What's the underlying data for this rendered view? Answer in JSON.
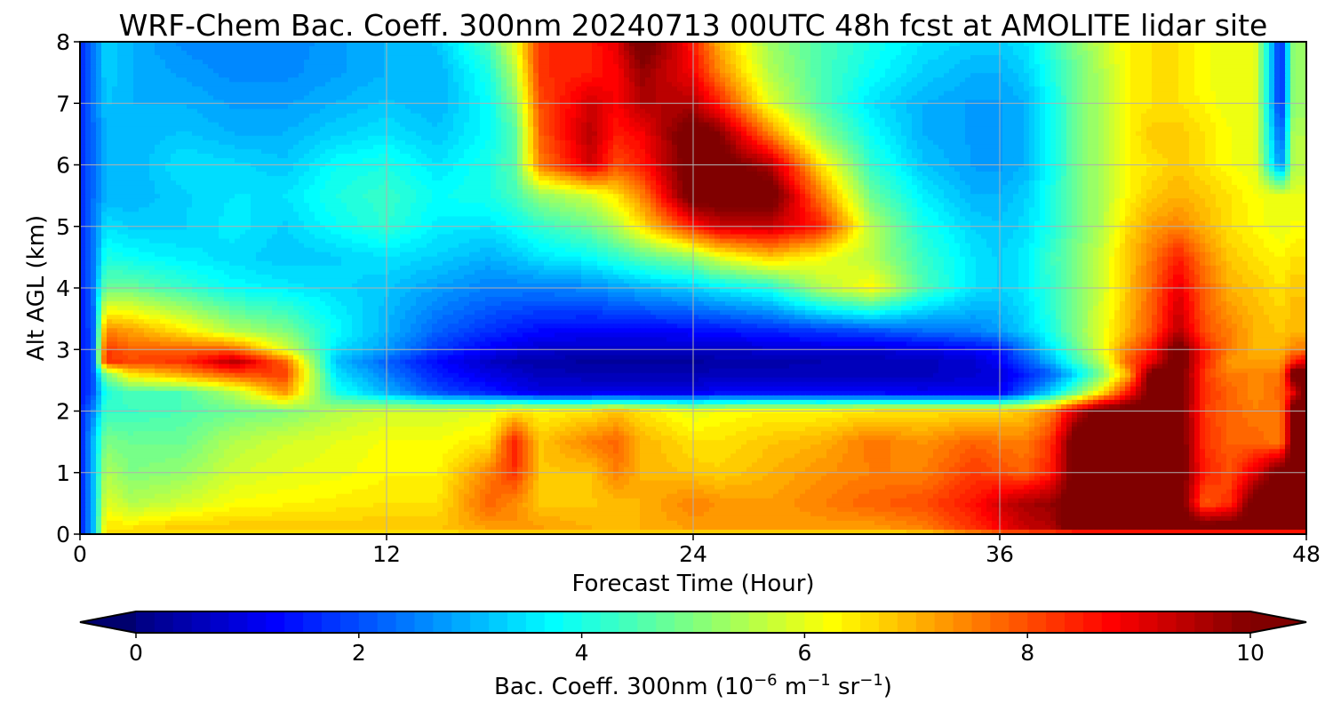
{
  "chart_data": {
    "type": "heatmap",
    "title": "WRF-Chem Bac. Coeff. 300nm  20240713 00UTC 48h fcst at AMOLITE lidar site",
    "xlabel": "Forecast Time (Hour)",
    "ylabel": "Alt AGL (km)",
    "xlim": [
      0,
      48
    ],
    "ylim": [
      0,
      8
    ],
    "x_ticks": [
      "0",
      "12",
      "24",
      "36",
      "48"
    ],
    "y_ticks": [
      "0",
      "1",
      "2",
      "3",
      "4",
      "5",
      "6",
      "7",
      "8"
    ],
    "grid": true,
    "colorbar": {
      "label_main": "Bac. Coeff. 300nm  (10",
      "label_exp1": "−6",
      "label_mid": " m",
      "label_exp2": "−1",
      "label_mid2": " sr",
      "label_exp3": "−1",
      "label_end": ")",
      "range": [
        0,
        10
      ],
      "extend": "both",
      "colormap": "jet",
      "ticks": [
        "0",
        "2",
        "4",
        "6",
        "8",
        "10"
      ]
    },
    "x": [
      0,
      0.5,
      1,
      2,
      4,
      6,
      8,
      10,
      12,
      14,
      16,
      17,
      18,
      20,
      21,
      22,
      24,
      25,
      27,
      29,
      31,
      33,
      35,
      36,
      37,
      38,
      39,
      40,
      41,
      42,
      43,
      44,
      45,
      46,
      47,
      47.5,
      48
    ],
    "y": [
      0,
      0.1,
      0.5,
      1,
      1.5,
      2,
      2.3,
      2.6,
      2.8,
      3,
      3.3,
      4,
      4.5,
      5,
      5.5,
      6,
      6.5,
      7,
      7.5,
      8
    ],
    "z": [
      [
        1.5,
        3,
        6.5,
        6.5,
        6.5,
        6.5,
        6.5,
        6.5,
        6.5,
        6.5,
        6.5,
        6.5,
        6.5,
        6.5,
        6.5,
        6.5,
        6.5,
        6.5,
        6.5,
        6.5,
        6.5,
        6.5,
        7.2,
        7.5,
        7.5,
        7.5,
        7.5,
        7.5,
        7.5,
        7.5,
        7.5,
        7.5,
        7.5,
        7.5,
        7.5,
        7.5,
        7.5
      ],
      [
        1.5,
        3,
        6.5,
        6.5,
        6.8,
        6.8,
        6.8,
        6.8,
        6.8,
        6.8,
        7.2,
        7.3,
        7.2,
        7,
        7,
        7,
        7.2,
        7.2,
        7.2,
        7.2,
        7.2,
        7.5,
        8.3,
        8.8,
        9.3,
        9.5,
        10.5,
        10.5,
        10.5,
        10.5,
        10.5,
        10.5,
        10.5,
        10.5,
        10.5,
        10.5,
        10.5
      ],
      [
        1.5,
        3,
        6,
        5.5,
        5.8,
        6.2,
        6.3,
        6.4,
        6.5,
        6.5,
        7.8,
        7.4,
        6.8,
        6.8,
        6.9,
        7,
        7.5,
        7.3,
        7.2,
        7.5,
        7.8,
        8,
        8.6,
        9.2,
        9.6,
        9.8,
        10.5,
        10.5,
        10.5,
        10.5,
        10.5,
        7.8,
        8.3,
        10.5,
        10.5,
        10.5,
        10.5
      ],
      [
        1.5,
        3,
        5.5,
        5,
        5.2,
        5.8,
        6,
        6.1,
        6.3,
        6.3,
        7.5,
        8.3,
        6.8,
        6.8,
        7.5,
        7,
        6.8,
        6.7,
        7,
        7.3,
        7.5,
        7.5,
        8.2,
        8,
        7.8,
        8.5,
        10.5,
        10.5,
        10.5,
        10.5,
        10.5,
        8.5,
        8,
        9,
        10.5,
        10.5,
        10.5
      ],
      [
        1.5,
        3,
        5,
        4.8,
        4.8,
        5.5,
        5.8,
        6,
        6.2,
        6.2,
        6.5,
        8.5,
        6.8,
        7.5,
        7.8,
        7,
        6.5,
        6.5,
        6.8,
        7,
        7.6,
        7.3,
        7.8,
        7.6,
        7.5,
        8.3,
        10.5,
        10.5,
        10.5,
        10.5,
        10.5,
        8.3,
        7.8,
        7.8,
        7.5,
        10.5,
        10.5
      ],
      [
        1.5,
        2.5,
        4.3,
        4.3,
        4.5,
        4.8,
        5,
        5.5,
        5.8,
        5.8,
        6,
        6.5,
        6.3,
        6.5,
        6.8,
        6.5,
        6,
        6.2,
        6.3,
        6.3,
        6.5,
        6.5,
        6.6,
        6.6,
        6.8,
        7.5,
        9.3,
        10.5,
        10.5,
        10.5,
        10.5,
        8.2,
        7.8,
        7.5,
        7.6,
        10.5,
        10.5
      ],
      [
        1.5,
        2,
        4,
        4.5,
        4.5,
        5.5,
        7.3,
        4,
        3,
        2,
        1.5,
        1.2,
        1,
        1,
        1,
        1,
        1,
        1.2,
        1.3,
        1.2,
        1.2,
        1.1,
        1.1,
        1.1,
        2.2,
        3.3,
        4.8,
        6.5,
        8.5,
        10.5,
        10.5,
        8.3,
        7.8,
        7.4,
        7.8,
        9,
        10.5
      ],
      [
        1.5,
        2,
        5,
        6.5,
        7.2,
        8,
        8.2,
        3.5,
        2.5,
        1.5,
        1,
        0.8,
        0.6,
        0.5,
        0.5,
        0.5,
        0.5,
        0.6,
        0.6,
        0.6,
        0.6,
        0.6,
        0.8,
        0.9,
        1.5,
        2.2,
        3.4,
        5,
        7,
        10.5,
        10.5,
        8.2,
        7.5,
        7.5,
        7.5,
        10.5,
        10.5
      ],
      [
        1.5,
        2,
        8.3,
        8.1,
        8.2,
        9.5,
        7.8,
        3.2,
        2.2,
        1.3,
        0.7,
        0.5,
        0.4,
        0.3,
        0.3,
        0.3,
        0.3,
        0.4,
        0.4,
        0.5,
        0.5,
        0.6,
        0.8,
        1.2,
        2,
        3,
        4.3,
        5.6,
        7.8,
        9,
        10.5,
        8.5,
        7.2,
        7.2,
        7.2,
        8.5,
        9
      ],
      [
        1.5,
        2,
        8.2,
        7.8,
        7.8,
        7.8,
        6,
        3.5,
        2.8,
        1.8,
        1.2,
        1,
        0.8,
        0.7,
        0.7,
        0.7,
        0.7,
        0.7,
        0.8,
        0.9,
        0.9,
        1,
        1.3,
        1.5,
        2.5,
        3.5,
        4.7,
        6,
        7.5,
        8.6,
        10.5,
        8.5,
        7.5,
        7,
        7,
        7.5,
        7.5
      ],
      [
        1.5,
        2,
        7.5,
        7.2,
        6.5,
        5.5,
        5,
        3.8,
        3,
        2.2,
        1.7,
        1.5,
        1.3,
        1.2,
        1.2,
        1.2,
        1.3,
        1.4,
        1.6,
        1.8,
        2,
        2.3,
        2.5,
        2.8,
        3.3,
        4,
        5,
        6,
        7,
        8,
        9.5,
        8,
        7.5,
        7,
        6.8,
        7,
        7
      ],
      [
        1.5,
        2.3,
        4.8,
        4.8,
        4.3,
        3.8,
        3.6,
        3.4,
        3.2,
        2.8,
        2.5,
        2.5,
        2.5,
        2.6,
        2.8,
        3,
        3.3,
        3.6,
        4,
        5.5,
        6.3,
        4.5,
        3.5,
        3.3,
        3.6,
        4.2,
        5,
        5.8,
        6.8,
        7.8,
        9,
        7.8,
        7,
        6.8,
        6.5,
        6.8,
        6.8
      ],
      [
        1.5,
        2.3,
        4,
        3.8,
        3.6,
        3.4,
        3.2,
        3.3,
        3.5,
        3.3,
        3,
        3.2,
        3.5,
        3.8,
        4.2,
        4.6,
        5.2,
        6,
        6.8,
        6.2,
        5.5,
        4.3,
        3.5,
        3.3,
        3.6,
        4.3,
        5,
        5.8,
        6.8,
        7.6,
        8.5,
        7.5,
        6.8,
        6.5,
        6.3,
        6.5,
        6.5
      ],
      [
        1.5,
        2.3,
        3.5,
        3.3,
        3.3,
        3.6,
        3.3,
        3.8,
        4.2,
        3.6,
        3.5,
        3.8,
        4.2,
        4.8,
        5.5,
        6.5,
        8.5,
        9.2,
        9.3,
        8.5,
        5.5,
        4,
        3.3,
        3.2,
        3.4,
        4,
        4.8,
        5.5,
        6.6,
        7.2,
        7.5,
        7,
        6.5,
        6.3,
        6,
        6.2,
        6.2
      ],
      [
        1.5,
        2.3,
        3,
        3,
        3.3,
        3.5,
        3.5,
        4,
        4.3,
        3.8,
        4,
        4.4,
        5.2,
        5.8,
        6.5,
        7.5,
        10.5,
        10.5,
        10.5,
        7.5,
        4.8,
        3.6,
        3,
        3,
        3.3,
        4,
        4.8,
        5.5,
        6.3,
        6.8,
        7,
        6.8,
        6.5,
        6.2,
        6,
        6,
        6
      ],
      [
        1.5,
        2.3,
        3,
        3,
        3.5,
        3.4,
        3.2,
        3.8,
        4,
        3.5,
        4,
        4.6,
        7.5,
        9.2,
        8,
        8.5,
        10.5,
        10.5,
        9.5,
        6.5,
        4.2,
        3.2,
        2.8,
        2.8,
        3,
        3.8,
        4.8,
        5.5,
        6.3,
        6.5,
        6.8,
        6.5,
        6.2,
        6,
        2.5,
        5.5,
        5.5
      ],
      [
        1.5,
        2.3,
        3,
        3,
        3.2,
        3,
        3,
        3.3,
        3.5,
        3.2,
        3.8,
        4.5,
        7.8,
        9.5,
        8.5,
        8.8,
        10.5,
        10,
        7.5,
        5.2,
        3.8,
        3,
        2.8,
        2.8,
        3,
        3.8,
        4.8,
        5.5,
        6.3,
        6.8,
        6.8,
        6.5,
        6.2,
        6,
        2,
        5.5,
        5.5
      ],
      [
        1.5,
        2.3,
        3.2,
        3,
        3,
        2.8,
        2.8,
        3,
        3.2,
        3,
        3.8,
        5,
        8,
        9.2,
        8.8,
        9.5,
        9.5,
        8.5,
        6,
        4.5,
        3.5,
        3,
        2.8,
        2.8,
        3,
        3.8,
        4.8,
        5.5,
        6.3,
        6.5,
        6.5,
        6.3,
        6,
        6,
        1.5,
        5.2,
        5.2
      ],
      [
        1.5,
        2.3,
        3.3,
        3,
        2.8,
        2.6,
        2.6,
        2.8,
        3,
        3,
        4,
        5.5,
        8.3,
        8.5,
        8.8,
        9.8,
        8.8,
        7.5,
        5.5,
        4.5,
        3.8,
        3.3,
        3,
        3,
        3.3,
        4,
        4.8,
        5.5,
        6.3,
        6.5,
        6.5,
        6.2,
        6,
        6,
        1.5,
        5.2,
        5.2
      ],
      [
        1.5,
        2.3,
        3.3,
        3,
        2.6,
        2.5,
        2.5,
        2.8,
        3,
        3.2,
        4.5,
        6,
        8.3,
        8.5,
        9,
        10.5,
        8.5,
        7,
        5.3,
        4.5,
        4,
        3.5,
        3.3,
        3.3,
        3.5,
        4.2,
        5,
        5.7,
        6.3,
        6.5,
        6.5,
        6.2,
        6,
        6,
        1.5,
        5.2,
        5.2
      ]
    ]
  }
}
